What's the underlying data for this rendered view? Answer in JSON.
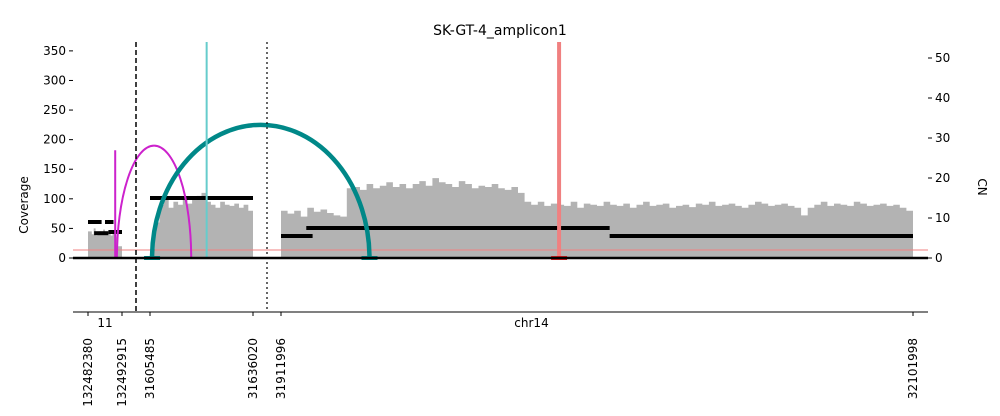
{
  "chart_data": {
    "type": "area",
    "title": "SK-GT-4_amplicon1",
    "ylabel": "Coverage",
    "y2label": "CN",
    "ylim": [
      0,
      365
    ],
    "y2lim": [
      0,
      54
    ],
    "yticks": [
      0,
      50,
      100,
      150,
      200,
      250,
      300,
      350
    ],
    "y2ticks": [
      0,
      10,
      20,
      30,
      40,
      50
    ],
    "chromosomes": [
      "11",
      "chr14"
    ],
    "position_labels": [
      "132482380",
      "132492915",
      "31605485",
      "31636020",
      "31911996",
      "32101998"
    ],
    "segments": [
      {
        "chrom": "11",
        "start": 132482380,
        "end": 132492915
      },
      {
        "chrom": "chr14",
        "start": 31605485,
        "end": 31636020
      },
      {
        "chrom": "chr14",
        "start": 31911996,
        "end": 32101998
      }
    ],
    "coverage_profile": [
      {
        "segment": 0,
        "from": 0.0,
        "to": 1.0,
        "values": [
          45,
          45,
          40,
          50,
          38,
          42,
          45,
          40,
          48,
          44,
          40,
          42,
          38,
          45,
          40,
          35,
          20,
          20
        ]
      },
      {
        "segment": 1,
        "from": 0.0,
        "to": 1.0,
        "values": [
          15,
          60,
          90,
          100,
          85,
          95,
          90,
          100,
          92,
          98,
          105,
          110,
          95,
          90,
          85,
          95,
          90,
          88,
          92,
          85,
          90,
          80
        ]
      },
      {
        "segment": 2,
        "from": 0.0,
        "to": 1.0,
        "values": [
          80,
          75,
          80,
          70,
          85,
          78,
          82,
          76,
          72,
          70,
          118,
          120,
          115,
          125,
          118,
          122,
          128,
          120,
          125,
          118,
          125,
          130,
          122,
          135,
          128,
          125,
          120,
          130,
          125,
          118,
          122,
          120,
          125,
          118,
          115,
          120,
          110,
          95,
          90,
          95,
          88,
          92,
          90,
          88,
          95,
          85,
          92,
          90,
          88,
          95,
          90,
          88,
          92,
          85,
          90,
          95,
          88,
          90,
          92,
          85,
          88,
          90,
          86,
          92,
          90,
          95,
          88,
          90,
          92,
          88,
          85,
          90,
          95,
          92,
          88,
          90,
          92,
          88,
          85,
          72,
          85,
          90,
          95,
          88,
          92,
          90,
          88,
          95,
          92,
          88,
          90,
          92,
          88,
          90,
          85,
          80
        ]
      }
    ],
    "cn_segments": [
      {
        "segment": 0,
        "from": 0.0,
        "to": 0.4,
        "cn": 9.0
      },
      {
        "segment": 0,
        "from": 0.18,
        "to": 0.6,
        "cn": 6.2
      },
      {
        "segment": 0,
        "from": 0.5,
        "to": 0.75,
        "cn": 9.0
      },
      {
        "segment": 0,
        "from": 0.6,
        "to": 1.0,
        "cn": 6.5
      },
      {
        "segment": 1,
        "from": 0.0,
        "to": 1.0,
        "cn": 15.0
      },
      {
        "segment": 2,
        "from": 0.0,
        "to": 0.05,
        "cn": 5.5
      },
      {
        "segment": 2,
        "from": 0.04,
        "to": 0.52,
        "cn": 7.5
      },
      {
        "segment": 2,
        "from": 0.52,
        "to": 1.0,
        "cn": 5.5
      }
    ],
    "cn_baseline": 2.0,
    "breakpoint_edges": [
      {
        "type": "arc",
        "color": "#cc22cc",
        "from": {
          "segment": 0,
          "pos": 0.85
        },
        "to": {
          "segment": 1,
          "pos": 0.4
        },
        "height": 190
      },
      {
        "type": "arc",
        "color": "#008888",
        "from": {
          "segment": 1,
          "pos": 0.02
        },
        "to": {
          "segment": 2,
          "pos": 0.14
        },
        "height": 225
      },
      {
        "type": "vertical",
        "color": "#cc22cc",
        "segment": 0,
        "pos": 0.8,
        "height": 182
      },
      {
        "type": "vertical",
        "color": "#66cccc",
        "segment": 1,
        "pos": 0.55,
        "height": 365
      },
      {
        "type": "vertical",
        "color": "#f08080",
        "segment": 2,
        "pos": 0.44,
        "height": 365
      }
    ],
    "segment_dividers": [
      {
        "after_segment": 0,
        "style": "dashed"
      },
      {
        "after_segment": 1,
        "style": "dotted"
      }
    ],
    "bottom_markers": [
      {
        "segment": 1,
        "pos": 0.02,
        "color": "#008888"
      },
      {
        "segment": 2,
        "pos": 0.14,
        "color": "#008888"
      },
      {
        "segment": 2,
        "pos": 0.44,
        "color": "#dd2222"
      }
    ],
    "colors": {
      "coverage": "#b3b3b3",
      "cn": "#000000",
      "baseline": "#f08080"
    },
    "grid": false
  }
}
